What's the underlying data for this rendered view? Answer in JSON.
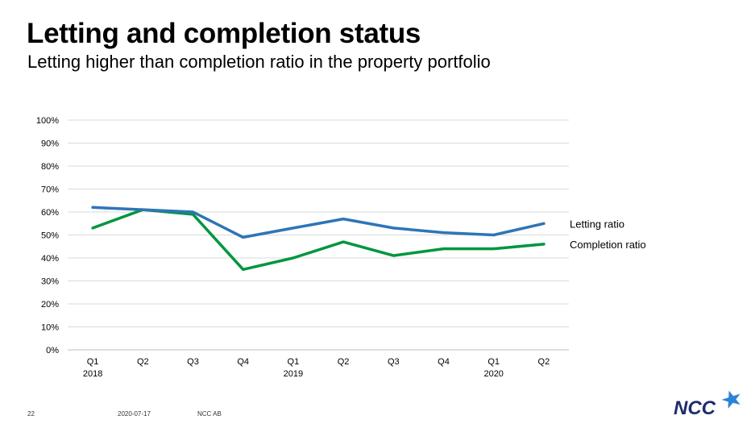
{
  "title": "Letting and completion status",
  "subtitle": "Letting higher than completion ratio in the property portfolio",
  "chart_data": {
    "type": "line",
    "categories": [
      [
        "Q1",
        "2018"
      ],
      [
        "Q2",
        ""
      ],
      [
        "Q3",
        ""
      ],
      [
        "Q4",
        ""
      ],
      [
        "Q1",
        "2019"
      ],
      [
        "Q2",
        ""
      ],
      [
        "Q3",
        ""
      ],
      [
        "Q4",
        ""
      ],
      [
        "Q1",
        "2020"
      ],
      [
        "Q2",
        ""
      ]
    ],
    "series": [
      {
        "name": "Letting ratio",
        "color": "#2e75b6",
        "values": [
          62,
          61,
          60,
          49,
          53,
          57,
          53,
          51,
          50,
          55
        ]
      },
      {
        "name": "Completion ratio",
        "color": "#00963f",
        "values": [
          53,
          61,
          59,
          35,
          40,
          47,
          41,
          44,
          44,
          46
        ]
      }
    ],
    "ylim": [
      0,
      100
    ],
    "y_ticks": [
      "0%",
      "10%",
      "20%",
      "30%",
      "40%",
      "50%",
      "60%",
      "70%",
      "80%",
      "90%",
      "100%"
    ],
    "grid": true,
    "legend": "right, labels at line ends"
  },
  "footer": {
    "page": "22",
    "date": "2020-07-17",
    "company": "NCC AB"
  },
  "logo": {
    "text": "NCC",
    "text_color": "#1c2d6b",
    "star_color": "#2b83d6"
  }
}
